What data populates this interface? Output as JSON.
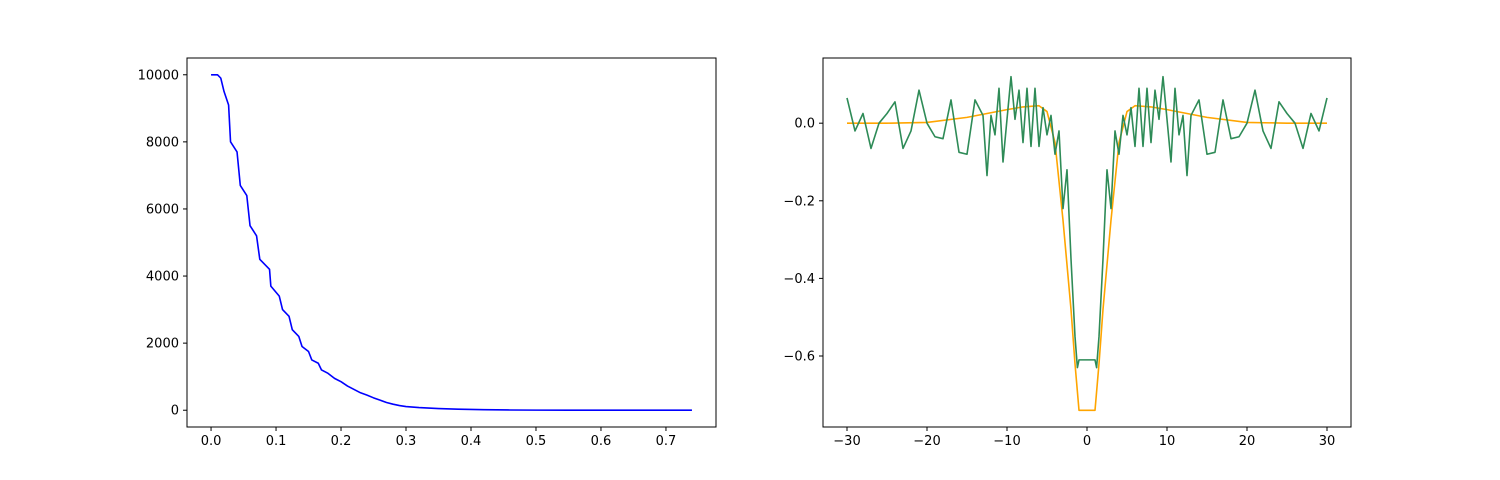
{
  "chart_data": [
    {
      "type": "line",
      "xlim": [
        -0.037,
        0.777
      ],
      "ylim": [
        -500,
        10500
      ],
      "xticks": [
        {
          "value": 0,
          "label": "0.0"
        },
        0.1,
        0.2,
        0.3,
        0.4,
        0.5,
        0.6,
        0.7
      ],
      "yticks": [
        0,
        2000,
        4000,
        6000,
        8000,
        10000
      ],
      "series": [
        {
          "color": "#0000ff",
          "x": [
            0,
            0.01,
            0.015,
            0.02,
            0.027,
            0.03,
            0.04,
            0.045,
            0.055,
            0.06,
            0.07,
            0.075,
            0.09,
            0.092,
            0.105,
            0.11,
            0.12,
            0.125,
            0.135,
            0.14,
            0.15,
            0.155,
            0.165,
            0.17,
            0.18,
            0.19,
            0.2,
            0.21,
            0.22,
            0.23,
            0.24,
            0.25,
            0.26,
            0.27,
            0.28,
            0.29,
            0.3,
            0.32,
            0.35,
            0.38,
            0.42,
            0.46,
            0.5,
            0.55,
            0.6,
            0.65,
            0.7,
            0.74
          ],
          "values": [
            10000,
            10000,
            9900,
            9500,
            9100,
            8000,
            7700,
            6700,
            6400,
            5500,
            5200,
            4500,
            4200,
            3700,
            3400,
            3000,
            2800,
            2400,
            2200,
            1900,
            1750,
            1500,
            1400,
            1200,
            1100,
            950,
            850,
            720,
            620,
            520,
            450,
            370,
            300,
            230,
            180,
            140,
            110,
            80,
            50,
            30,
            15,
            7,
            3,
            1,
            0,
            0,
            0,
            0
          ]
        }
      ]
    },
    {
      "type": "line",
      "xlim": [
        -33,
        33
      ],
      "ylim": [
        -0.783,
        0.168
      ],
      "xticks": [
        {
          "value": -30,
          "label": "−30"
        },
        {
          "value": -20,
          "label": "−20"
        },
        {
          "value": -10,
          "label": "−10"
        },
        0,
        10,
        20,
        30
      ],
      "yticks": [
        {
          "value": -0.6,
          "label": "−0.6"
        },
        {
          "value": -0.4,
          "label": "−0.4"
        },
        {
          "value": -0.2,
          "label": "−0.2"
        },
        {
          "value": 0,
          "label": "0.0"
        }
      ],
      "series": [
        {
          "color": "#ffa500",
          "x": [
            -30,
            -25,
            -20,
            -15,
            -10,
            -8,
            -6,
            -5,
            -4,
            -3,
            -2,
            -1.5,
            -1,
            1,
            1.5,
            2,
            3,
            4,
            5,
            6,
            8,
            10,
            15,
            20,
            25,
            30
          ],
          "values": [
            0,
            0,
            0.002,
            0.015,
            0.035,
            0.042,
            0.045,
            0.03,
            -0.05,
            -0.25,
            -0.48,
            -0.62,
            -0.74,
            -0.74,
            -0.62,
            -0.48,
            -0.25,
            -0.05,
            0.03,
            0.045,
            0.042,
            0.035,
            0.015,
            0.002,
            0,
            0
          ]
        },
        {
          "color": "#2e8b57",
          "x": [
            -30,
            -29,
            -28,
            -27,
            -26,
            -25,
            -24,
            -23,
            -22,
            -21,
            -20,
            -19,
            -18,
            -17,
            -16,
            -15,
            -14,
            -13,
            -12.5,
            -12,
            -11.5,
            -11,
            -10.5,
            -10,
            -9.5,
            -9,
            -8.5,
            -8,
            -7.5,
            -7,
            -6.5,
            -6,
            -5.5,
            -5,
            -4.5,
            -4,
            -3.5,
            -3,
            -2.5,
            -2,
            -1.5,
            -1.2,
            -1,
            1,
            1.2,
            1.5,
            2,
            2.5,
            3,
            3.5,
            4,
            4.5,
            5,
            5.5,
            6,
            6.5,
            7,
            7.5,
            8,
            8.5,
            9,
            9.5,
            10,
            10.5,
            11,
            11.5,
            12,
            12.5,
            13,
            14,
            15,
            16,
            17,
            18,
            19,
            20,
            21,
            22,
            23,
            24,
            25,
            26,
            27,
            28,
            29,
            30
          ],
          "values": [
            0.065,
            -0.02,
            0.025,
            -0.065,
            0,
            0.025,
            0.055,
            -0.065,
            -0.02,
            0.085,
            0,
            -0.035,
            -0.04,
            0.06,
            -0.075,
            -0.08,
            0.06,
            0.02,
            -0.135,
            0.02,
            -0.03,
            0.09,
            -0.1,
            0.01,
            0.12,
            0.01,
            0.085,
            -0.05,
            0.09,
            -0.06,
            0.09,
            -0.06,
            0.04,
            -0.03,
            0.02,
            -0.08,
            -0.02,
            -0.22,
            -0.12,
            -0.35,
            -0.55,
            -0.63,
            -0.61,
            -0.61,
            -0.63,
            -0.55,
            -0.35,
            -0.12,
            -0.22,
            -0.02,
            -0.08,
            0.02,
            -0.03,
            0.04,
            -0.06,
            0.09,
            -0.06,
            0.09,
            -0.05,
            0.085,
            0.01,
            0.12,
            0.01,
            -0.1,
            0.09,
            -0.03,
            0.02,
            -0.135,
            0.02,
            0.06,
            -0.08,
            -0.075,
            0.06,
            -0.04,
            -0.035,
            0,
            0.085,
            -0.02,
            -0.065,
            0.055,
            0.025,
            0,
            -0.065,
            0.025,
            -0.02,
            0.065
          ]
        }
      ]
    }
  ]
}
